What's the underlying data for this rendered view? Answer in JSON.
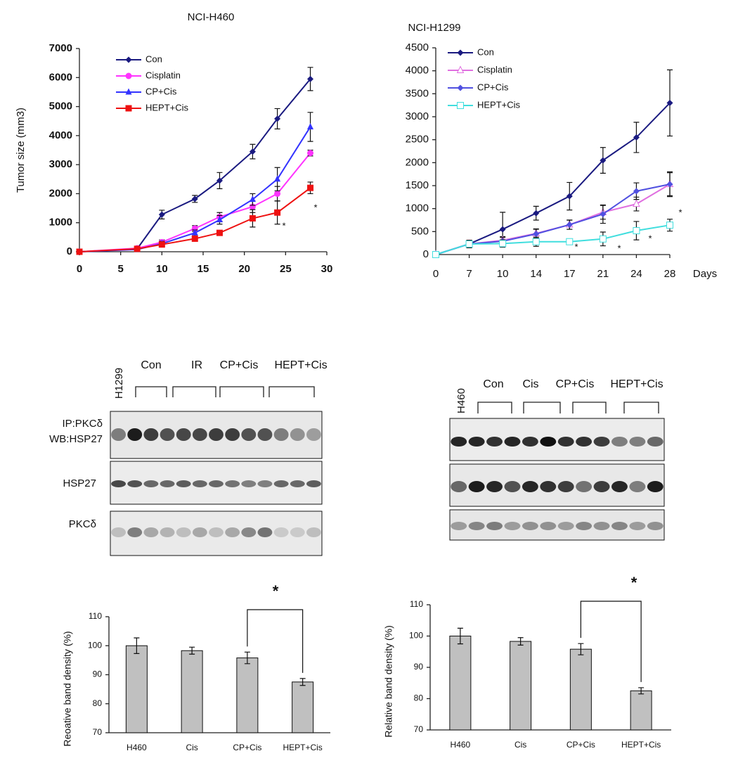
{
  "chart_data": [
    {
      "type": "line",
      "title": "NCI-H460",
      "ylabel": "Tumor size (mm3)",
      "x": [
        0,
        7,
        10,
        14,
        17,
        21,
        24,
        28
      ],
      "xlim": [
        0,
        30
      ],
      "xticks": [
        0,
        5,
        10,
        15,
        20,
        25,
        30
      ],
      "ylim": [
        0,
        7000
      ],
      "yticks": [
        0,
        1000,
        2000,
        3000,
        4000,
        5000,
        6000,
        7000
      ],
      "series": [
        {
          "name": "Con",
          "color": "#1a1a80",
          "marker": "diamond",
          "values": [
            0,
            100,
            1280,
            1820,
            2450,
            3450,
            4580,
            5950
          ],
          "errors": [
            0,
            0,
            150,
            120,
            280,
            250,
            350,
            400
          ]
        },
        {
          "name": "Cisplatin",
          "color": "#ff33ff",
          "marker": "circle",
          "values": [
            0,
            120,
            330,
            800,
            1200,
            1550,
            2000,
            3400
          ],
          "errors": [
            0,
            0,
            80,
            100,
            150,
            200,
            250,
            100
          ]
        },
        {
          "name": "CP+Cis",
          "color": "#3333ff",
          "marker": "triangle",
          "values": [
            0,
            80,
            280,
            650,
            1100,
            1800,
            2500,
            4300
          ],
          "errors": [
            0,
            0,
            80,
            100,
            150,
            200,
            400,
            500
          ]
        },
        {
          "name": "HEPT+Cis",
          "color": "#ee1111",
          "marker": "square",
          "values": [
            0,
            100,
            250,
            450,
            650,
            1150,
            1350,
            2200
          ],
          "errors": [
            0,
            0,
            50,
            80,
            80,
            300,
            400,
            200
          ]
        }
      ],
      "annotations": [
        "*",
        "*"
      ]
    },
    {
      "type": "line",
      "title": "NCI-H1299",
      "xlabel": "Days",
      "categories": [
        "0",
        "7",
        "10",
        "14",
        "17",
        "21",
        "24",
        "28"
      ],
      "ylim": [
        0,
        4500
      ],
      "yticks": [
        0,
        500,
        1000,
        1500,
        2000,
        2500,
        3000,
        3500,
        4000,
        4500
      ],
      "series": [
        {
          "name": "Con",
          "color": "#1a1a80",
          "marker": "diamond",
          "values": [
            0,
            230,
            550,
            900,
            1270,
            2050,
            2550,
            3300
          ],
          "errors": [
            0,
            80,
            370,
            150,
            300,
            280,
            330,
            720
          ]
        },
        {
          "name": "Cisplatin",
          "color": "#e070e0",
          "marker": "triangle-open",
          "values": [
            0,
            230,
            310,
            460,
            650,
            920,
            1100,
            1530
          ],
          "errors": [
            0,
            80,
            80,
            100,
            100,
            150,
            150,
            250
          ]
        },
        {
          "name": "CP+Cis",
          "color": "#5050e0",
          "marker": "diamond",
          "values": [
            0,
            230,
            290,
            450,
            650,
            880,
            1380,
            1530
          ],
          "errors": [
            0,
            80,
            80,
            100,
            100,
            200,
            180,
            270
          ]
        },
        {
          "name": "HEPT+Cis",
          "color": "#40dede",
          "marker": "square-open",
          "values": [
            0,
            230,
            240,
            280,
            280,
            340,
            520,
            640
          ],
          "errors": [
            0,
            80,
            80,
            100,
            50,
            150,
            200,
            130
          ]
        }
      ],
      "annotations": [
        "*",
        "*",
        "*",
        "*"
      ]
    },
    {
      "type": "bar",
      "ylabel": "Reoative band density (%)",
      "color": "#c0c0c0",
      "categories": [
        "H460",
        "Cis",
        "CP+Cis",
        "HEPT+Cis"
      ],
      "values": [
        100,
        98.3,
        95.8,
        87.5
      ],
      "errors": [
        2.7,
        1.2,
        2,
        1.2
      ],
      "ylim": [
        70,
        110
      ],
      "yticks": [
        70,
        80,
        90,
        100,
        110
      ],
      "annotations": [
        "*"
      ]
    },
    {
      "type": "bar",
      "ylabel": "Relative band density (%)",
      "color": "#c0c0c0",
      "categories": [
        "H460",
        "Cis",
        "CP+Cis",
        "HEPT+Cis"
      ],
      "values": [
        100,
        98.3,
        95.8,
        82.5
      ],
      "errors": [
        2.5,
        1.2,
        1.8,
        1
      ],
      "ylim": [
        70,
        110
      ],
      "yticks": [
        70,
        80,
        90,
        100,
        110
      ],
      "annotations": [
        "*"
      ]
    }
  ],
  "blots": [
    {
      "control": "H1299",
      "groups": [
        "Con",
        "IR",
        "CP+Cis",
        "HEPT+Cis"
      ],
      "rows": [
        "IP:PKCδ",
        "WB:HSP27",
        "HSP27",
        "PKCδ"
      ]
    },
    {
      "control": "H460",
      "groups": [
        "Con",
        "Cis",
        "CP+Cis",
        "HEPT+Cis"
      ]
    }
  ]
}
